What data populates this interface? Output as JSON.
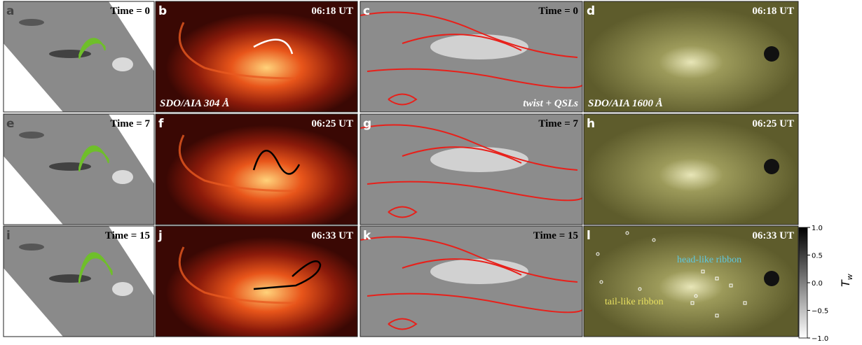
{
  "panels": [
    {
      "label": "a",
      "time": "Time = 0"
    },
    {
      "label": "b",
      "time": "06:18 UT",
      "caption": "SDO/AIA 304 Å"
    },
    {
      "label": "c",
      "time": "Time = 0",
      "caption": "twist + QSLs"
    },
    {
      "label": "d",
      "time": "06:18 UT",
      "caption": "SDO/AIA 1600 Å"
    },
    {
      "label": "e",
      "time": "Time = 7"
    },
    {
      "label": "f",
      "time": "06:25 UT"
    },
    {
      "label": "g",
      "time": "Time = 7"
    },
    {
      "label": "h",
      "time": "06:25 UT"
    },
    {
      "label": "i",
      "time": "Time = 15"
    },
    {
      "label": "j",
      "time": "06:33 UT"
    },
    {
      "label": "k",
      "time": "Time = 15"
    },
    {
      "label": "l",
      "time": "06:33 UT",
      "annotations": [
        "head-like ribbon",
        "tail-like ribbon"
      ]
    }
  ],
  "colorbar": {
    "label": {
      "main": "T",
      "sub": "w"
    },
    "lim": [
      -1,
      1
    ],
    "ticks": [
      {
        "value": 1,
        "label": "1.0"
      },
      {
        "value": 0.5,
        "label": "0.5"
      },
      {
        "value": 0,
        "label": "0.0"
      },
      {
        "value": -0.5,
        "label": "−0.5"
      },
      {
        "value": -1,
        "label": "−1.0"
      }
    ]
  }
}
